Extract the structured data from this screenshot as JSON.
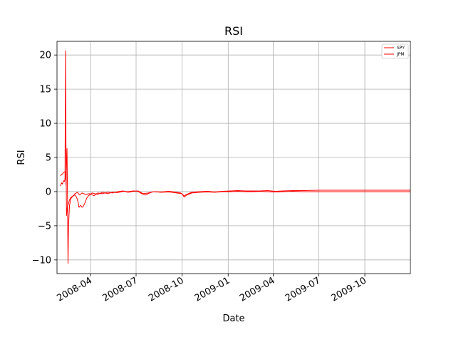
{
  "chart_data": {
    "type": "line",
    "title": "RSI",
    "xlabel": "Date",
    "ylabel": "RSI",
    "x_range": [
      "2008-01-25",
      "2009-12-31"
    ],
    "ylim": [
      -12.0,
      22.0
    ],
    "y_ticks": [
      -10,
      -5,
      0,
      5,
      10,
      15,
      20
    ],
    "x_ticks": [
      "2008-04",
      "2008-07",
      "2008-10",
      "2009-01",
      "2009-04",
      "2009-07",
      "2009-10"
    ],
    "grid": true,
    "legend_position": "top-right",
    "colors": {
      "SPY": "#ff0000",
      "JPM": "#ff0000"
    },
    "series": [
      {
        "name": "SPY",
        "points": [
          [
            "2008-02-01",
            0.8
          ],
          [
            "2008-02-03",
            1.3
          ],
          [
            "2008-02-05",
            1.1
          ],
          [
            "2008-02-07",
            1.6
          ],
          [
            "2008-02-09",
            1.5
          ],
          [
            "2008-02-10",
            1.9
          ],
          [
            "2008-02-11",
            20.6
          ],
          [
            "2008-02-12",
            6.0
          ],
          [
            "2008-02-13",
            -3.5
          ],
          [
            "2008-02-15",
            -2.0
          ],
          [
            "2008-02-17",
            -1.8
          ],
          [
            "2008-02-19",
            -1.2
          ],
          [
            "2008-02-22",
            -0.8
          ],
          [
            "2008-02-26",
            -0.7
          ],
          [
            "2008-03-01",
            -0.3
          ],
          [
            "2008-03-06",
            -0.1
          ],
          [
            "2008-03-10",
            -0.5
          ],
          [
            "2008-03-15",
            -0.2
          ],
          [
            "2008-03-22",
            -0.4
          ],
          [
            "2008-03-30",
            -0.3
          ],
          [
            "2008-04-08",
            -0.6
          ],
          [
            "2008-04-15",
            -0.2
          ],
          [
            "2008-04-25",
            -0.3
          ],
          [
            "2008-05-05",
            -0.1
          ],
          [
            "2008-05-15",
            -0.2
          ],
          [
            "2008-05-25",
            0.0
          ],
          [
            "2008-06-05",
            0.1
          ],
          [
            "2008-06-15",
            -0.1
          ],
          [
            "2008-06-25",
            0.05
          ],
          [
            "2008-07-05",
            0.1
          ],
          [
            "2008-07-15",
            -0.3
          ],
          [
            "2008-07-25",
            -0.2
          ],
          [
            "2008-08-05",
            0.0
          ],
          [
            "2008-08-20",
            -0.05
          ],
          [
            "2008-09-05",
            0.05
          ],
          [
            "2008-09-20",
            -0.1
          ],
          [
            "2008-09-28",
            -0.2
          ],
          [
            "2008-10-05",
            -0.6
          ],
          [
            "2008-10-10",
            -0.4
          ],
          [
            "2008-10-20",
            -0.1
          ],
          [
            "2008-11-05",
            0.0
          ],
          [
            "2008-11-20",
            0.05
          ],
          [
            "2008-12-05",
            -0.05
          ],
          [
            "2008-12-20",
            0.05
          ],
          [
            "2009-01-05",
            0.1
          ],
          [
            "2009-01-20",
            0.15
          ],
          [
            "2009-02-05",
            0.1
          ],
          [
            "2009-02-20",
            0.1
          ],
          [
            "2009-03-05",
            0.1
          ],
          [
            "2009-03-20",
            0.15
          ],
          [
            "2009-04-05",
            0.05
          ],
          [
            "2009-04-20",
            0.1
          ],
          [
            "2009-05-10",
            0.15
          ],
          [
            "2009-06-01",
            0.15
          ],
          [
            "2009-07-01",
            0.2
          ],
          [
            "2009-08-01",
            0.2
          ],
          [
            "2009-09-01",
            0.2
          ],
          [
            "2009-10-01",
            0.2
          ],
          [
            "2009-11-01",
            0.2
          ],
          [
            "2009-12-01",
            0.2
          ],
          [
            "2009-12-31",
            0.2
          ]
        ]
      },
      {
        "name": "JPM",
        "points": [
          [
            "2008-02-01",
            2.3
          ],
          [
            "2008-02-03",
            2.5
          ],
          [
            "2008-02-05",
            2.6
          ],
          [
            "2008-02-07",
            2.8
          ],
          [
            "2008-02-09",
            2.9
          ],
          [
            "2008-02-11",
            2.9
          ],
          [
            "2008-02-12",
            1.0
          ],
          [
            "2008-02-13",
            4.5
          ],
          [
            "2008-02-14",
            6.3
          ],
          [
            "2008-02-15",
            -1.0
          ],
          [
            "2008-02-16",
            -10.5
          ],
          [
            "2008-02-17",
            -5.0
          ],
          [
            "2008-02-19",
            -2.0
          ],
          [
            "2008-02-22",
            -1.0
          ],
          [
            "2008-02-26",
            -0.6
          ],
          [
            "2008-03-01",
            -0.5
          ],
          [
            "2008-03-04",
            -0.8
          ],
          [
            "2008-03-07",
            -1.5
          ],
          [
            "2008-03-09",
            -2.3
          ],
          [
            "2008-03-12",
            -2.0
          ],
          [
            "2008-03-15",
            -2.3
          ],
          [
            "2008-03-18",
            -2.1
          ],
          [
            "2008-03-21",
            -1.6
          ],
          [
            "2008-03-24",
            -1.0
          ],
          [
            "2008-03-28",
            -0.6
          ],
          [
            "2008-04-04",
            -0.2
          ],
          [
            "2008-04-15",
            -0.4
          ],
          [
            "2008-04-25",
            -0.1
          ],
          [
            "2008-05-05",
            -0.3
          ],
          [
            "2008-05-15",
            -0.1
          ],
          [
            "2008-05-25",
            -0.15
          ],
          [
            "2008-06-05",
            0.05
          ],
          [
            "2008-06-15",
            0.0
          ],
          [
            "2008-06-25",
            0.1
          ],
          [
            "2008-07-05",
            0.05
          ],
          [
            "2008-07-12",
            -0.3
          ],
          [
            "2008-07-20",
            -0.5
          ],
          [
            "2008-07-28",
            -0.2
          ],
          [
            "2008-08-05",
            0.0
          ],
          [
            "2008-08-20",
            -0.1
          ],
          [
            "2008-09-05",
            -0.05
          ],
          [
            "2008-09-20",
            -0.2
          ],
          [
            "2008-10-01",
            -0.3
          ],
          [
            "2008-10-05",
            -0.8
          ],
          [
            "2008-10-10",
            -0.5
          ],
          [
            "2008-10-20",
            -0.2
          ],
          [
            "2008-11-05",
            -0.1
          ],
          [
            "2008-11-20",
            -0.05
          ],
          [
            "2008-12-05",
            -0.1
          ],
          [
            "2008-12-20",
            0.0
          ],
          [
            "2009-01-05",
            0.0
          ],
          [
            "2009-01-20",
            0.05
          ],
          [
            "2009-02-05",
            0.0
          ],
          [
            "2009-02-20",
            0.0
          ],
          [
            "2009-03-05",
            0.05
          ],
          [
            "2009-03-20",
            0.0
          ],
          [
            "2009-04-05",
            -0.05
          ],
          [
            "2009-04-20",
            0.0
          ],
          [
            "2009-05-10",
            0.05
          ],
          [
            "2009-06-01",
            0.0
          ],
          [
            "2009-07-01",
            0.0
          ],
          [
            "2009-08-01",
            0.0
          ],
          [
            "2009-09-01",
            0.0
          ],
          [
            "2009-10-01",
            0.0
          ],
          [
            "2009-11-01",
            0.0
          ],
          [
            "2009-12-01",
            0.0
          ],
          [
            "2009-12-31",
            0.0
          ]
        ]
      }
    ]
  }
}
